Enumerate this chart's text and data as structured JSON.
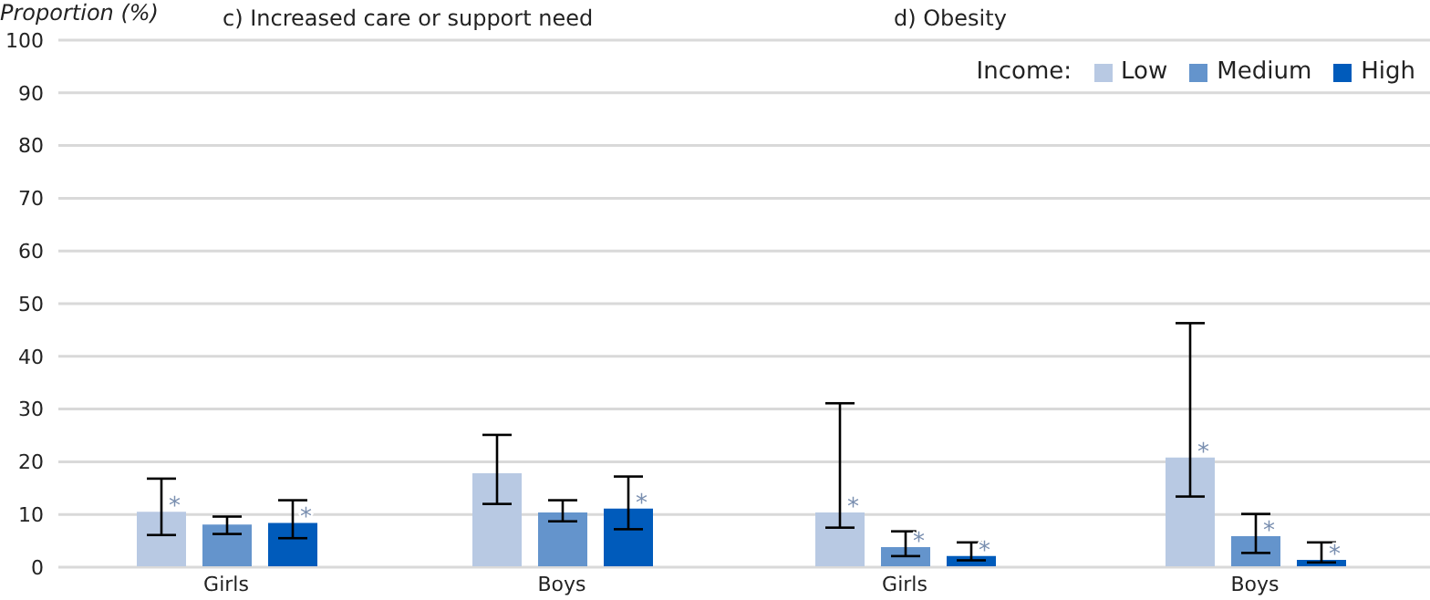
{
  "chart_data": [
    {
      "type": "bar",
      "title": "c) Increased care or support need",
      "ylabel": "Proportion (%)",
      "categories": [
        "Girls",
        "Boys"
      ],
      "ylim": [
        0,
        100
      ],
      "yticks": [
        0,
        10,
        20,
        30,
        40,
        50,
        60,
        70,
        80,
        90,
        100
      ],
      "grid": "y",
      "legend": false,
      "series": [
        {
          "color": "#b8c9e3",
          "values": [
            10.5,
            17.8
          ],
          "errors": [
            [
              6.1,
              16.8
            ],
            [
              12,
              25.1
            ]
          ],
          "value_labels": [
            "*",
            null
          ]
        },
        {
          "color": "#6494cc",
          "values": [
            8.1,
            10.4
          ],
          "errors": [
            [
              6.3,
              9.6
            ],
            [
              8.7,
              12.7
            ]
          ],
          "value_labels": [
            null,
            null
          ]
        },
        {
          "color": "#005bbb",
          "values": [
            8.4,
            11.1
          ],
          "errors": [
            [
              5.5,
              12.7
            ],
            [
              7.2,
              17.2
            ]
          ],
          "value_labels": [
            "*",
            "*"
          ]
        }
      ]
    },
    {
      "type": "bar",
      "title": "d) Obesity",
      "legend_title": "Income:",
      "categories": [
        "Girls",
        "Boys"
      ],
      "ylim": [
        0,
        100
      ],
      "yticks": [
        0,
        10,
        20,
        30,
        40,
        50,
        60,
        70,
        80,
        90,
        100
      ],
      "grid": "y",
      "legend": "top right",
      "tick_labels": "x",
      "series": [
        {
          "name": "Low",
          "color": "#b8c9e3",
          "values": [
            10.4,
            20.8
          ],
          "errors": [
            [
              7.5,
              31.1
            ],
            [
              13.4,
              46.3
            ]
          ],
          "value_labels": [
            "*",
            "*"
          ]
        },
        {
          "name": "Medium",
          "color": "#6494cc",
          "values": [
            3.8,
            5.9
          ],
          "errors": [
            [
              2.1,
              6.8
            ],
            [
              2.7,
              10.1
            ]
          ],
          "value_labels": [
            "*",
            "*"
          ]
        },
        {
          "name": "High",
          "color": "#005bbb",
          "values": [
            2.1,
            1.4
          ],
          "errors": [
            [
              1.3,
              4.7
            ],
            [
              0.9,
              4.7
            ]
          ],
          "value_labels": [
            "*",
            "*"
          ]
        }
      ]
    }
  ]
}
